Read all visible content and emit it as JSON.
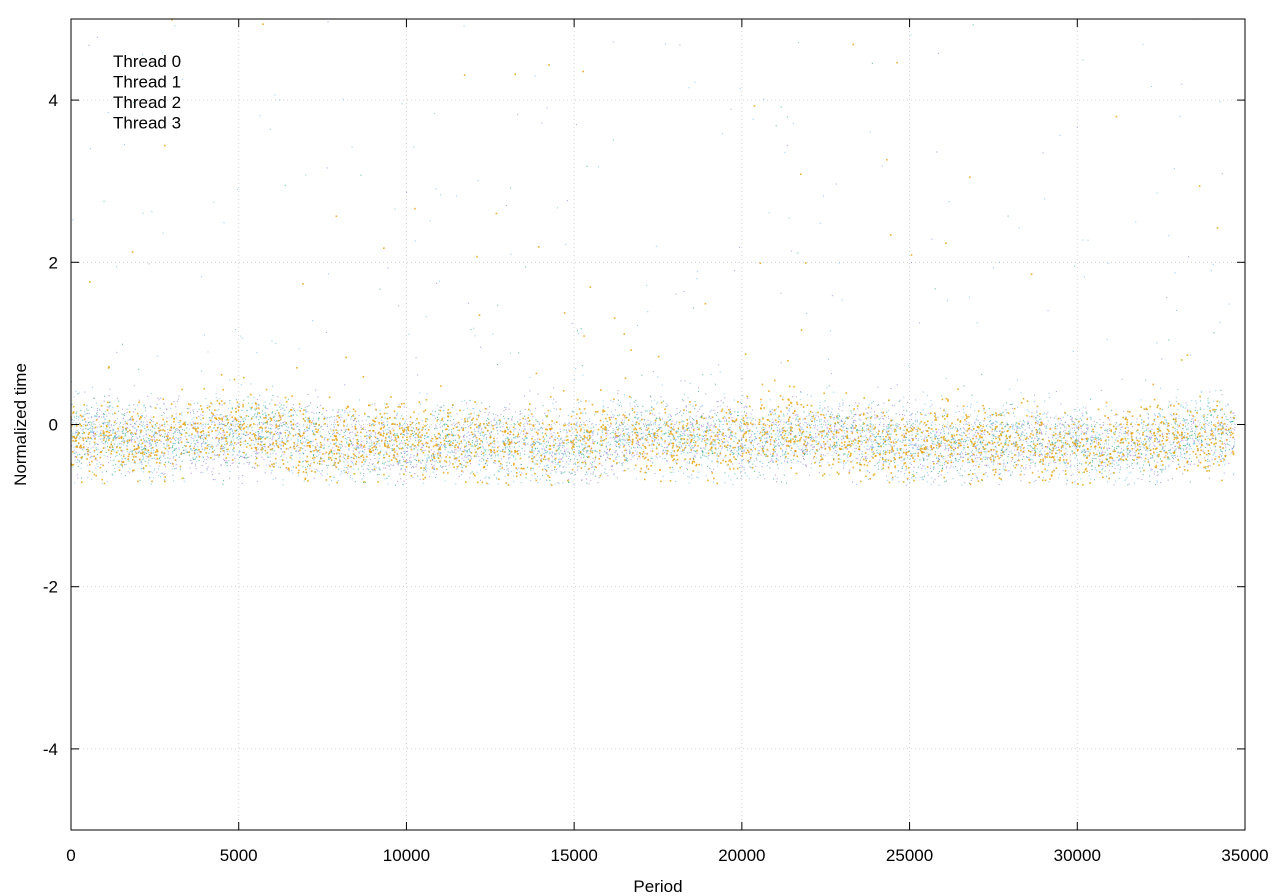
{
  "chart_data": {
    "type": "scatter",
    "title": "",
    "xlabel": "Period",
    "ylabel": "Normalized time",
    "xlim": [
      0,
      35000
    ],
    "ylim": [
      -5,
      5
    ],
    "xticks": [
      0,
      5000,
      10000,
      15000,
      20000,
      25000,
      30000,
      35000
    ],
    "yticks": [
      -4,
      -2,
      0,
      2,
      4
    ],
    "grid": true,
    "legend_position": "top-left",
    "x_max_data": 34700,
    "series": [
      {
        "name": "Thread 0",
        "color": "#9467d4",
        "center": -0.2,
        "spread": 0.22,
        "outlier_rate": 0.03
      },
      {
        "name": "Thread 1",
        "color": "#0a9e73",
        "center": -0.2,
        "spread": 0.2,
        "outlier_rate": 0.02
      },
      {
        "name": "Thread 2",
        "color": "#56b4e9",
        "center": -0.2,
        "spread": 0.24,
        "outlier_rate": 0.06
      },
      {
        "name": "Thread 3",
        "color": "#e69f00",
        "center": -0.18,
        "spread": 0.22,
        "outlier_rate": 0.02
      }
    ]
  }
}
